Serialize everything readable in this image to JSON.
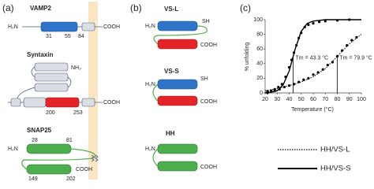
{
  "panel_a": {
    "label": "(a)",
    "vamp2": {
      "title": "VAMP2",
      "n_term": "H₂N",
      "residues": [
        "31",
        "55",
        "84"
      ],
      "c_term": "COOH"
    },
    "syntaxin": {
      "title": "Syntaxin",
      "n_term": "NH₂",
      "residues": [
        "200",
        "253"
      ],
      "c_term": "COOH"
    },
    "snap25": {
      "title": "SNAP25",
      "n_term": "H₂N",
      "residues_top": [
        "28",
        "81"
      ],
      "residues_bottom": [
        "149",
        "202"
      ],
      "c_term": "COOH"
    }
  },
  "panel_b": {
    "label": "(b)",
    "constructs": [
      {
        "title": "VS-L",
        "n_term": "H₂N",
        "sh": "SH",
        "c_term": "COOH"
      },
      {
        "title": "VS-S",
        "n_term": "H₂N",
        "sh": "SH",
        "c_term": "COOH"
      },
      {
        "title": "HH",
        "n_term": "H₂N",
        "c_term": "COOH"
      }
    ]
  },
  "chart_data": {
    "type": "scatter",
    "panel_label": "(c)",
    "x_label": "Temperature (°C)",
    "y_label": "% unfolding",
    "xlim": [
      20,
      100
    ],
    "xticks": [
      20,
      30,
      40,
      50,
      60,
      70,
      80,
      90,
      100
    ],
    "ylim": [
      0,
      100
    ],
    "yticks": [
      0,
      20,
      40,
      60,
      80,
      100
    ],
    "series": [
      {
        "name": "HH/VS-L",
        "color": "#000000",
        "line_style": "dotted",
        "x": [
          22,
          28,
          32,
          36,
          40,
          44,
          48,
          52,
          56,
          60,
          64,
          68,
          72,
          76,
          80,
          84,
          88,
          92,
          96
        ],
        "values": [
          0,
          3,
          5,
          8,
          10,
          12,
          15,
          18,
          20,
          25,
          28,
          32,
          38,
          42,
          50,
          58,
          65,
          72,
          76
        ],
        "fit_x": [
          20,
          30,
          40,
          50,
          60,
          70,
          80,
          90,
          100
        ],
        "fit_values": [
          3,
          6,
          10,
          15,
          22,
          33,
          50,
          67,
          80
        ]
      },
      {
        "name": "HH/VS-S",
        "color": "#000000",
        "line_style": "solid",
        "x": [
          22,
          25,
          28,
          31,
          34,
          37,
          40,
          42,
          44,
          46,
          48,
          50,
          53,
          56,
          60,
          65,
          70,
          80,
          90
        ],
        "values": [
          2,
          3,
          5,
          8,
          12,
          22,
          35,
          45,
          55,
          65,
          75,
          82,
          90,
          93,
          95,
          97,
          98,
          99,
          100
        ],
        "fit_x": [
          20,
          25,
          30,
          35,
          40,
          45,
          50,
          55,
          60,
          65,
          70,
          80,
          90,
          100
        ],
        "fit_values": [
          0.3,
          1,
          3,
          11,
          30,
          60,
          84,
          95,
          98,
          99,
          100,
          100,
          100,
          100
        ]
      }
    ],
    "annotations": [
      {
        "label": "Tm = 43.3 °C",
        "value": 43.3
      },
      {
        "label": "Tm = 79.9 °C",
        "value": 79.9
      }
    ]
  }
}
